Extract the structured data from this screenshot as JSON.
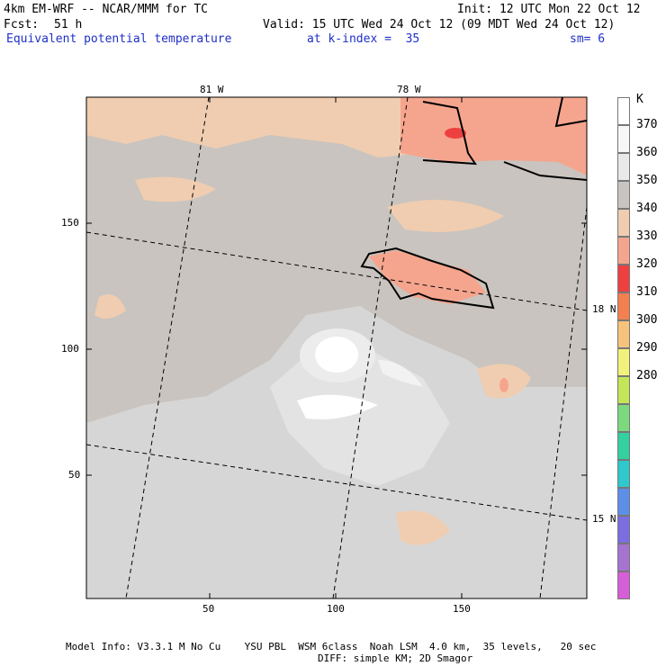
{
  "header": {
    "model": "4km EM-WRF -- NCAR/MMM for TC",
    "init": "Init: 12 UTC Mon 22 Oct 12",
    "fcst_label": "Fcst:",
    "fcst_value": "51 h",
    "valid": "Valid: 15 UTC Wed 24 Oct 12 (09 MDT Wed 24 Oct 12)",
    "field": "Equivalent potential temperature",
    "level": "at k-index =  35",
    "smoothing": "sm= 6"
  },
  "map": {
    "x_ticks": [
      "50",
      "100",
      "150"
    ],
    "y_ticks": [
      "150",
      "100",
      "50"
    ],
    "lon_labels": [
      "81 W",
      "78 W"
    ],
    "lat_labels": [
      "18 N",
      "15 N"
    ]
  },
  "colorbar": {
    "unit": "K",
    "levels": [
      {
        "label": "",
        "color": "#ffffff"
      },
      {
        "label": "370",
        "color": "#f7f7f7"
      },
      {
        "label": "360",
        "color": "#e9e9e9"
      },
      {
        "label": "350",
        "color": "#c9c4bf"
      },
      {
        "label": "340",
        "color": "#f0cdb0"
      },
      {
        "label": "330",
        "color": "#f5a58e"
      },
      {
        "label": "320",
        "color": "#ee4040"
      },
      {
        "label": "310",
        "color": "#f48050"
      },
      {
        "label": "300",
        "color": "#f6c37a"
      },
      {
        "label": "290",
        "color": "#f2f27a"
      },
      {
        "label": "280",
        "color": "#c2e657"
      },
      {
        "label": "",
        "color": "#7dd97e"
      },
      {
        "label": "",
        "color": "#33d0a0"
      },
      {
        "label": "",
        "color": "#2fc8cc"
      },
      {
        "label": "",
        "color": "#5c8fe8"
      },
      {
        "label": "",
        "color": "#7a6ee0"
      },
      {
        "label": "",
        "color": "#a673d0"
      },
      {
        "label": "",
        "color": "#d65ed8"
      }
    ]
  },
  "footer": {
    "line1": "Model Info: V3.3.1 M No Cu    YSU PBL  WSM 6class  Noah LSM  4.0 km,  35 levels,   20 sec",
    "line2": "DIFF: simple KM; 2D Smagor"
  }
}
